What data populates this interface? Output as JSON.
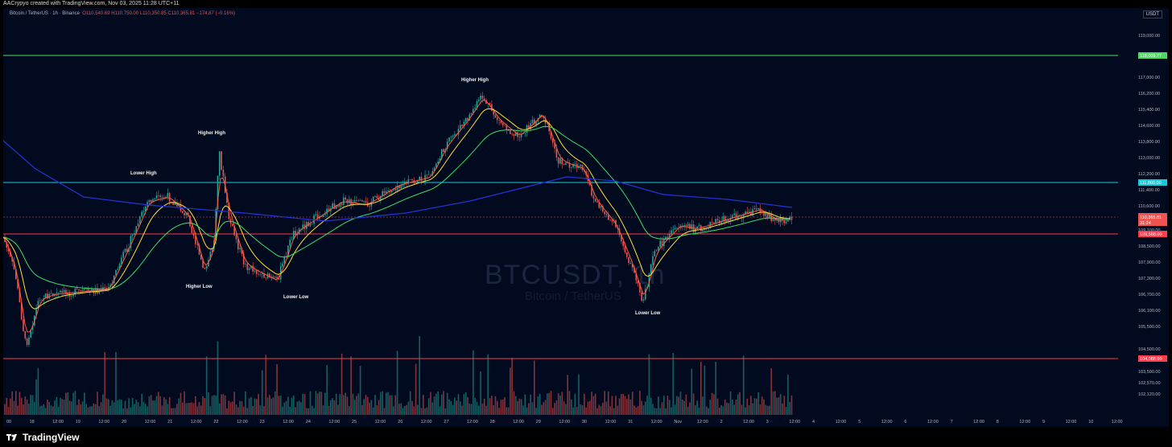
{
  "attribution": "AACrypyo created with TradingView.com, Nov 03, 2025 11:28 UTC+11",
  "symbol_bar": {
    "title": "Bitcoin / TetherUS · 1h · Binance",
    "open": "O110,540.69",
    "high": "H110,750.00",
    "low": "L110,350.85",
    "close": "C110,365.81",
    "change": "−174.87 (−0.16%)"
  },
  "currency": "USDT",
  "watermark": {
    "symbol": "BTCUSDT, 1h",
    "name": "Bitcoin / TetherUS"
  },
  "footer": {
    "brand": "TradingView"
  },
  "colors": {
    "background": "#020a1f",
    "up": "#26a69a",
    "down": "#ef5350",
    "ema_fast": "#ff5a3c",
    "ema_mid": "#ffe033",
    "ema_slow": "#3be06a",
    "ema_long": "#2433d9",
    "level_green": "#4cd964",
    "level_cyan": "#17c9d8",
    "level_red": "#ff3b4e"
  },
  "price_axis": {
    "labels": [
      "119,000.00",
      "117,000.00",
      "116,200.00",
      "115,400.00",
      "114,600.00",
      "113,800.00",
      "113,000.00",
      "112,200.00",
      "111,400.00",
      "110,600.00",
      "109,100.00",
      "108,500.00",
      "107,900.00",
      "107,300.00",
      "106,700.00",
      "106,100.00",
      "105,500.00",
      "104,500.00",
      "103,500.00",
      "102,570.00",
      "102,120.00"
    ]
  },
  "time_axis": {
    "labels": [
      "00",
      "18",
      "12:00",
      "19",
      "12:00",
      "20",
      "12:00",
      "21",
      "12:00",
      "22",
      "12:00",
      "23",
      "12:00",
      "24",
      "12:00",
      "25",
      "12:00",
      "26",
      "12:00",
      "27",
      "12:00",
      "28",
      "12:00",
      "29",
      "12:00",
      "30",
      "12:00",
      "31",
      "12:00",
      "Nov",
      "12:00",
      "2",
      "12:00",
      "3",
      "12:00",
      "4",
      "12:00",
      "5",
      "12:00",
      "6",
      "12:00",
      "7",
      "12:00",
      "8",
      "12:00",
      "9",
      "12:00",
      "10",
      "12:00"
    ]
  },
  "levels": [
    {
      "label": "118,009.77",
      "color": "green"
    },
    {
      "label": "111,860.00",
      "color": "cyan"
    },
    {
      "label": "109,588.00",
      "color": "red"
    },
    {
      "label": "104,088.00",
      "color": "red"
    }
  ],
  "current_price": {
    "price": "110,365.81",
    "countdown": "31:24"
  },
  "annotations": [
    "Lower High",
    "Higher High",
    "Higher Low",
    "Lower Low",
    "Higher High",
    "Lower Low"
  ]
}
